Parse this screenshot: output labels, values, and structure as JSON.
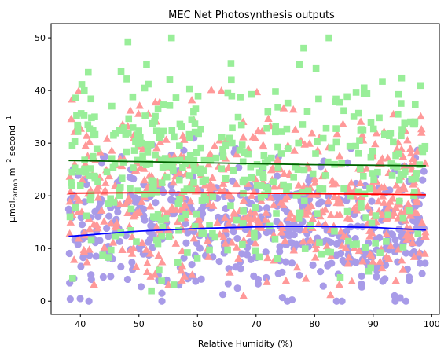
{
  "chart_data": {
    "type": "scatter",
    "title": "MEC Net Photosynthesis outputs",
    "xlabel": "Relative Humidity (%)",
    "ylabel": {
      "prefix": "μmol",
      "subscript": "carbon",
      "mid": " m",
      "sup1": "−2",
      "mid2": " second",
      "sup2": "−1"
    },
    "xlim": [
      35,
      101.3
    ],
    "ylim": [
      -2.5,
      52.7
    ],
    "x_ticks": [
      40,
      50,
      60,
      70,
      80,
      90,
      100
    ],
    "y_ticks": [
      0,
      10,
      20,
      30,
      40,
      50
    ],
    "grid": false,
    "legend": "none",
    "x_range_of_points": [
      38,
      99
    ],
    "scatter_series": [
      {
        "marker": "circle",
        "color": "#a89be8",
        "y_center": 14,
        "y_spread": [
          0,
          35
        ],
        "count": 520
      },
      {
        "marker": "triangle",
        "color": "#ff9999",
        "y_center": 20,
        "y_spread": [
          0,
          44
        ],
        "count": 540
      },
      {
        "marker": "square",
        "color": "#99ee99",
        "y_center": 26,
        "y_spread": [
          0,
          50
        ],
        "count": 420
      }
    ],
    "fit_lines": [
      {
        "color": "#006400",
        "x": [
          38,
          50,
          60,
          70,
          80,
          90,
          99
        ],
        "y": [
          26.7,
          26.5,
          26.3,
          26.1,
          25.9,
          25.8,
          25.7
        ]
      },
      {
        "color": "#ff0000",
        "x": [
          38,
          50,
          60,
          70,
          80,
          90,
          99
        ],
        "y": [
          20.5,
          20.6,
          20.6,
          20.5,
          20.4,
          20.3,
          20.2
        ]
      },
      {
        "color": "#0000ff",
        "x": [
          38,
          45,
          50,
          60,
          70,
          75,
          80,
          90,
          99
        ],
        "y": [
          12.3,
          12.9,
          13.3,
          13.8,
          14.1,
          14.2,
          14.2,
          14.0,
          13.5
        ]
      }
    ]
  }
}
